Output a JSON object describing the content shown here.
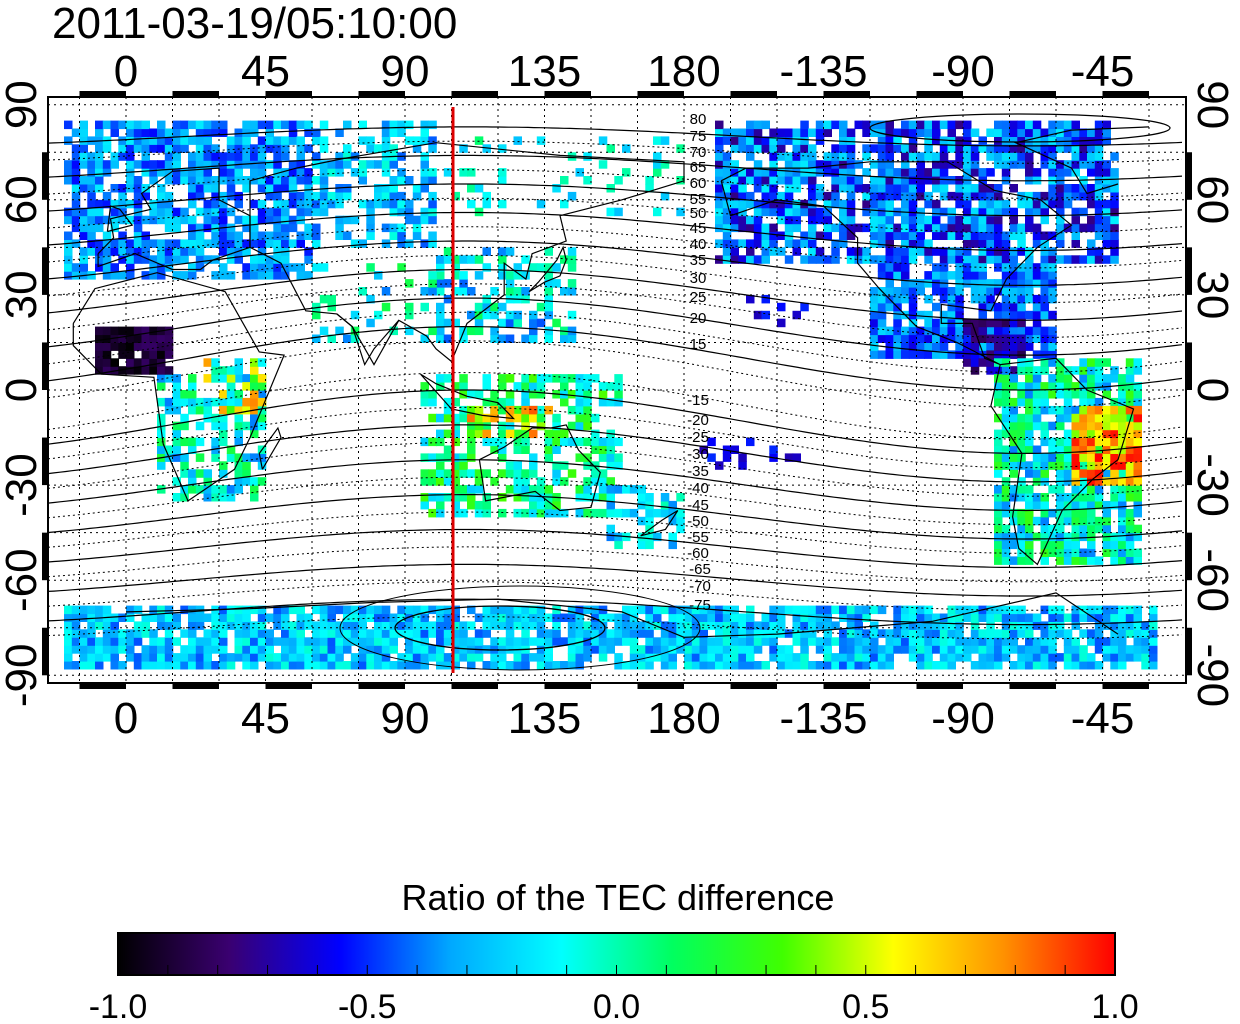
{
  "title": "2011-03-19/05:10:00",
  "map": {
    "lon_ticks": [
      "0",
      "45",
      "90",
      "135",
      "180",
      "-135",
      "-90",
      "-45"
    ],
    "lat_ticks": [
      "90",
      "60",
      "30",
      "0",
      "-30",
      "-60",
      "-90"
    ],
    "contour_labels_north": [
      "80",
      "75",
      "70",
      "65",
      "60",
      "55",
      "50",
      "45",
      "40",
      "35",
      "30",
      "25",
      "20",
      "15"
    ],
    "contour_labels_south": [
      "-15",
      "-20",
      "-25",
      "-30",
      "-35",
      "-40",
      "-45",
      "-50",
      "-55",
      "-60",
      "-65",
      "-70",
      "-75"
    ],
    "meridian_line_color": "#dd0000",
    "meridian_line_lon": 103
  },
  "colorbar": {
    "title": "Ratio of the TEC difference",
    "ticks": [
      "-1.0",
      "-0.5",
      "0.0",
      "0.5",
      "1.0"
    ],
    "range": [
      -1.0,
      1.0
    ],
    "colormap": [
      "#000000",
      "#3a0070",
      "#0000ff",
      "#00a8ff",
      "#00ffff",
      "#00ff60",
      "#40ff00",
      "#ffff00",
      "#ff9000",
      "#ff0000"
    ]
  }
}
